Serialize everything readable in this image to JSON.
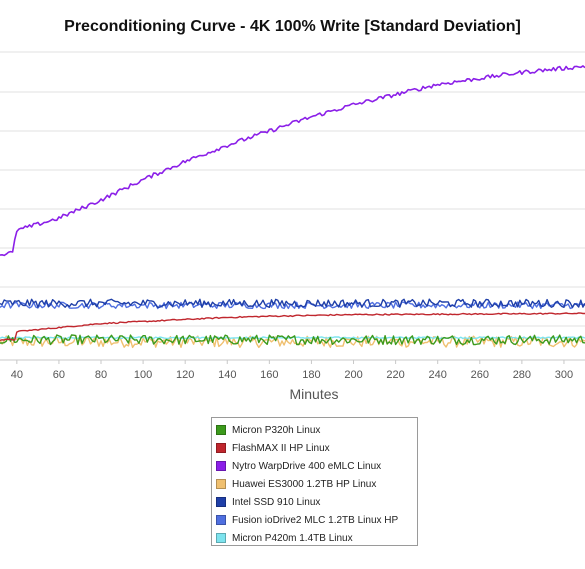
{
  "chart_data": {
    "type": "line",
    "title": "Preconditioning Curve - 4K 100% Write [Standard Deviation]",
    "xlabel": "Minutes",
    "ylabel": "",
    "xlim": [
      32,
      310
    ],
    "x_ticks": [
      "40",
      "60",
      "80",
      "100",
      "120",
      "140",
      "160",
      "180",
      "200",
      "220",
      "240",
      "260",
      "280",
      "300"
    ],
    "grid": true,
    "legend_position": "bottom-center",
    "series": [
      {
        "name": "Micron P320h Linux",
        "color": "#3c9a1c",
        "x": [
          32,
          60,
          100,
          140,
          180,
          220,
          260,
          310
        ],
        "y": [
          0.9,
          0.9,
          0.9,
          0.9,
          0.9,
          0.9,
          0.9,
          0.9
        ]
      },
      {
        "name": "FlashMAX II HP Linux",
        "color": "#c0262d",
        "x": [
          32,
          39,
          40,
          60,
          80,
          100,
          120,
          140,
          160,
          180,
          200,
          240,
          280,
          310
        ],
        "y": [
          0.9,
          0.9,
          1.1,
          1.2,
          1.3,
          1.35,
          1.4,
          1.45,
          1.48,
          1.5,
          1.52,
          1.53,
          1.54,
          1.55
        ]
      },
      {
        "name": "Nytro WarpDrive 400 eMLC Linux",
        "color": "#8b1fe8",
        "x": [
          32,
          38,
          40,
          50,
          60,
          80,
          100,
          120,
          140,
          160,
          180,
          200,
          220,
          240,
          260,
          280,
          300,
          310
        ],
        "y": [
          3.0,
          3.05,
          3.6,
          3.75,
          3.9,
          4.35,
          4.85,
          5.3,
          5.7,
          6.05,
          6.4,
          6.7,
          6.95,
          7.2,
          7.35,
          7.5,
          7.6,
          7.65
        ]
      },
      {
        "name": "Huawei ES3000 1.2TB HP Linux",
        "color": "#f0c070",
        "x": [
          32,
          60,
          100,
          140,
          180,
          220,
          260,
          310
        ],
        "y": [
          0.85,
          0.85,
          0.85,
          0.85,
          0.85,
          0.85,
          0.85,
          0.85
        ]
      },
      {
        "name": "Intel SSD 910 Linux",
        "color": "#1f3fa8",
        "x": [
          32,
          60,
          100,
          140,
          180,
          220,
          260,
          310
        ],
        "y": [
          1.8,
          1.8,
          1.8,
          1.8,
          1.8,
          1.8,
          1.8,
          1.8
        ]
      },
      {
        "name": "Fusion ioDrive2 MLC 1.2TB Linux HP",
        "color": "#4f6fe0",
        "x": [
          32,
          60,
          100,
          140,
          180,
          220,
          260,
          310
        ],
        "y": [
          1.75,
          1.75,
          1.75,
          1.75,
          1.75,
          1.75,
          1.75,
          1.75
        ]
      },
      {
        "name": "Micron P420m 1.4TB Linux",
        "color": "#7de3ee",
        "x": [
          32,
          60,
          100,
          140,
          180,
          220,
          260,
          310
        ],
        "y": [
          0.95,
          0.95,
          0.95,
          0.95,
          0.95,
          0.95,
          0.95,
          0.95
        ]
      }
    ]
  }
}
